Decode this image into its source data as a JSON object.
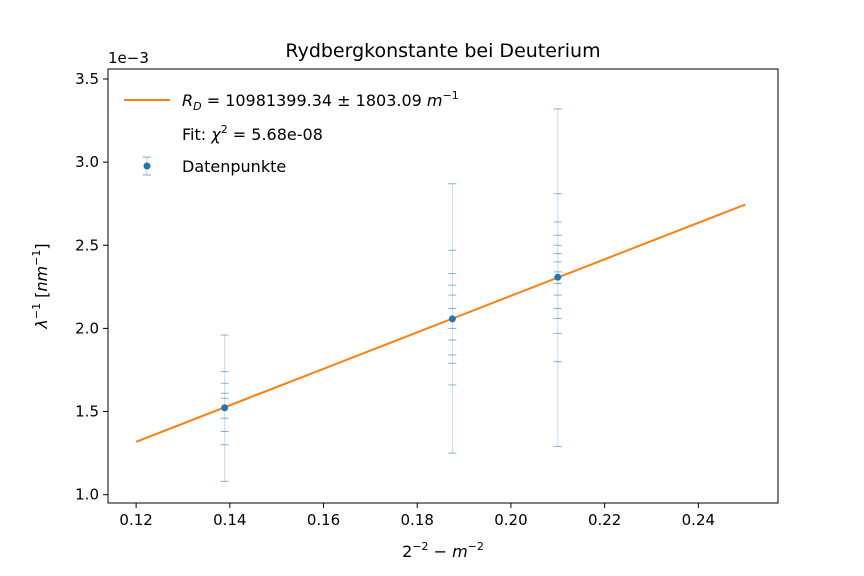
{
  "chart_data": {
    "type": "scatter",
    "title": "Rydbergkonstante bei Deuterium",
    "xlabel": "2^{-2} - m^{-2}",
    "ylabel": "λ^{-1} [nm^{-1}]",
    "y_offset_label": "1e−3",
    "xlim": [
      0.114,
      0.257
    ],
    "ylim": [
      0.00095,
      0.00356
    ],
    "x_ticks": [
      0.12,
      0.14,
      0.16,
      0.18,
      0.2,
      0.22,
      0.24
    ],
    "x_tick_labels": [
      "0.12",
      "0.14",
      "0.16",
      "0.18",
      "0.20",
      "0.22",
      "0.24"
    ],
    "y_ticks": [
      0.001,
      0.0015,
      0.002,
      0.0025,
      0.003,
      0.0035
    ],
    "y_tick_labels": [
      "1.0",
      "1.5",
      "2.0",
      "2.5",
      "3.0",
      "3.5"
    ],
    "grid": false,
    "legend_position": "top-left",
    "fit": {
      "name": "R_D = 10981399.34 ± 1803.09 m^{-1}",
      "label_parts": {
        "symbol": "R",
        "sub": "D",
        "value": " = 10981399.34 ± 1803.09 ",
        "unit": "m",
        "unit_exp": "−1"
      },
      "x": [
        0.12,
        0.25
      ],
      "y": [
        0.001318,
        0.002745
      ],
      "color": "#ff7f0e"
    },
    "fit_info": {
      "text_prefix": "Fit: ",
      "symbol": "χ",
      "exp": "2",
      "text_suffix": " = 5.68e-08"
    },
    "points": {
      "name": "Datenpunkte",
      "color": "#1f77b4",
      "x": [
        0.1389,
        0.1875,
        0.21
      ],
      "y": [
        0.001523,
        0.002057,
        0.002308
      ],
      "yerr_caps": [
        [
          0.00108,
          0.0013,
          0.00138,
          0.00146,
          0.00158,
          0.00161,
          0.00167,
          0.00174,
          0.00196
        ],
        [
          0.00125,
          0.00166,
          0.00179,
          0.00184,
          0.00193,
          0.002,
          0.00212,
          0.0022,
          0.00226,
          0.00233,
          0.00247,
          0.00287
        ],
        [
          0.00129,
          0.0018,
          0.00197,
          0.00206,
          0.00212,
          0.0022,
          0.00227,
          0.00234,
          0.0024,
          0.00245,
          0.0025,
          0.00256,
          0.00264,
          0.00281,
          0.00332
        ]
      ]
    }
  }
}
